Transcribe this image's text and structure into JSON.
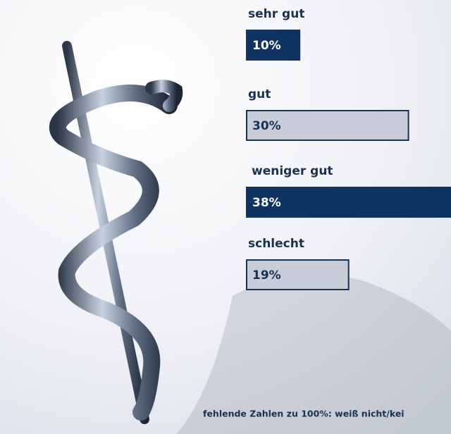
{
  "chart_data": {
    "type": "bar",
    "categories": [
      "sehr gut",
      "gut",
      "weniger gut",
      "schlecht"
    ],
    "values": [
      10,
      30,
      38,
      19
    ],
    "value_labels": [
      "10%",
      "30%",
      "38%",
      "19%"
    ],
    "colors": [
      "#0f3462",
      "#c9cdd9",
      "#0f3462",
      "#c9cdd9"
    ],
    "footnote": "fehlende Zahlen zu 100%: weiß nicht/kei"
  }
}
